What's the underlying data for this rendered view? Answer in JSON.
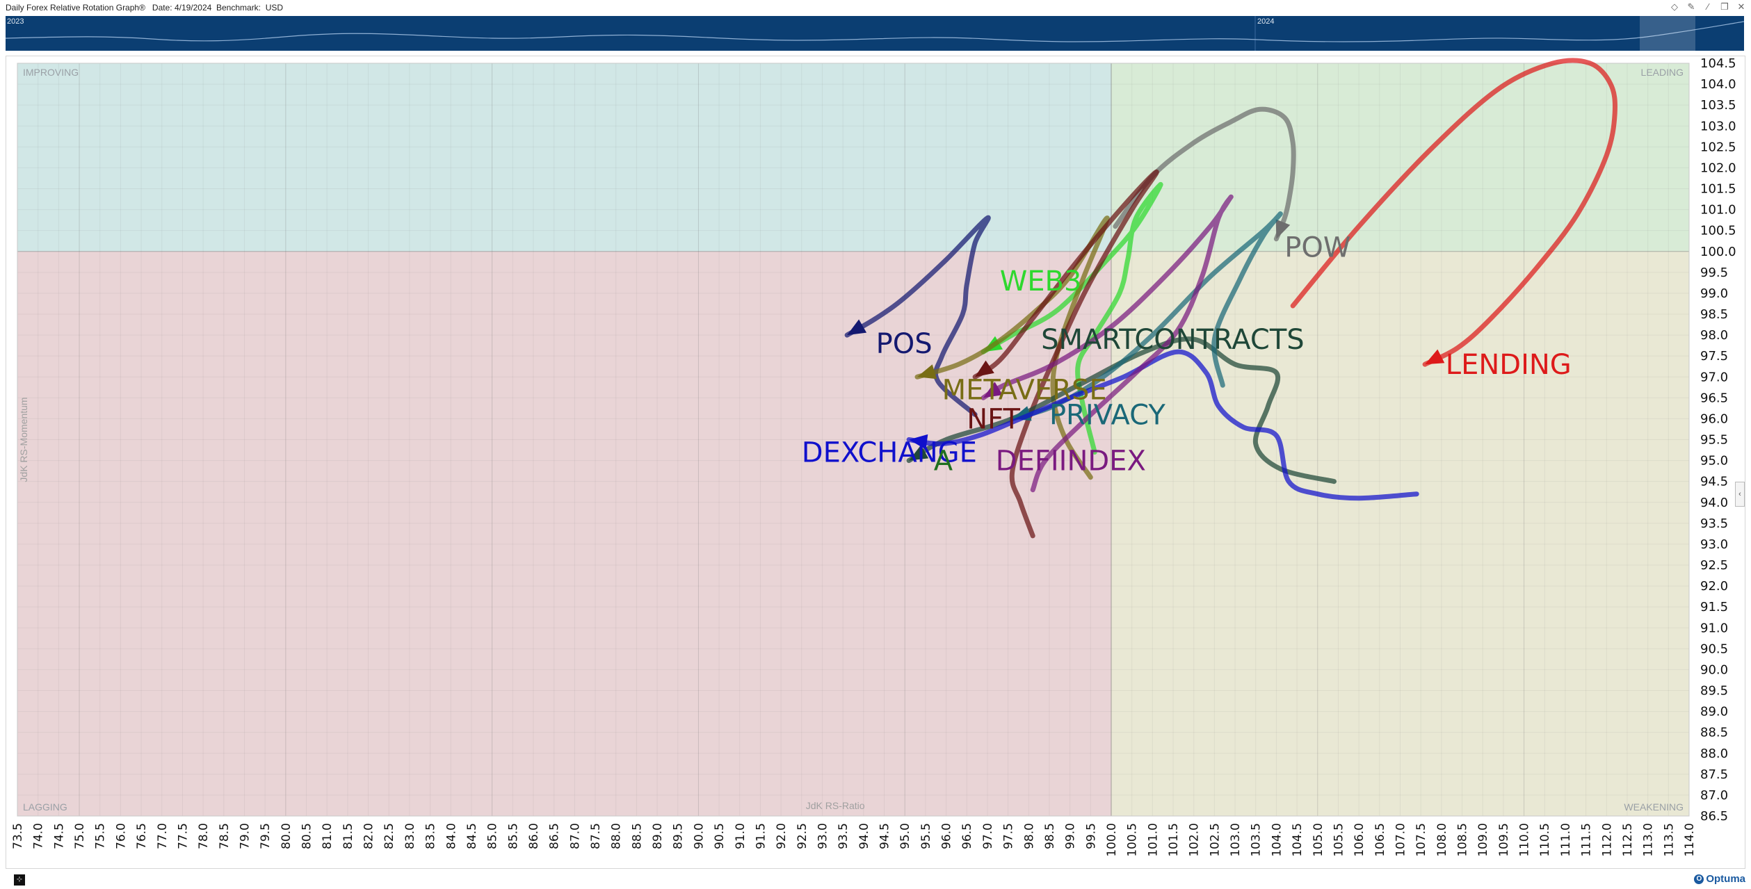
{
  "window": {
    "title": "Daily Forex Relative Rotation Graph®   Date: 4/19/2024  Benchmark:  USD",
    "controls": [
      "diamond-icon",
      "pin-icon",
      "edit-icon",
      "restore-icon",
      "close-icon"
    ]
  },
  "timeline": {
    "year_labels": [
      "2023",
      "2024"
    ]
  },
  "footer": {
    "logo": "Optuma"
  },
  "colors": {
    "improving": "#d1e7e6",
    "leading": "#d8ebd6",
    "lagging": "#e9d4d6",
    "weakening": "#e9e8d4",
    "timeline": "#0b3e72"
  },
  "chart_data": {
    "type": "line",
    "quadrants": {
      "improving": "IMPROVING",
      "leading": "LEADING",
      "lagging": "LAGGING",
      "weakening": "WEAKENING"
    },
    "xlabel": "JdK RS-Ratio",
    "ylabel": "JdK RS-Momentum",
    "xlim": [
      73.5,
      114.0
    ],
    "ylim": [
      86.5,
      104.5
    ],
    "center": [
      100,
      100
    ],
    "x_ticks": [
      "73.5",
      "74.0",
      "74.5",
      "75.0",
      "75.5",
      "76.0",
      "76.5",
      "77.0",
      "77.5",
      "78.0",
      "78.5",
      "79.0",
      "79.5",
      "80.0",
      "80.5",
      "81.0",
      "81.5",
      "82.0",
      "82.5",
      "83.0",
      "83.5",
      "84.0",
      "84.5",
      "85.0",
      "85.5",
      "86.0",
      "86.5",
      "87.0",
      "87.5",
      "88.0",
      "88.5",
      "89.0",
      "89.5",
      "90.0",
      "90.5",
      "91.0",
      "91.5",
      "92.0",
      "92.5",
      "93.0",
      "93.5",
      "94.0",
      "94.5",
      "95.0",
      "95.5",
      "96.0",
      "96.5",
      "97.0",
      "97.5",
      "98.0",
      "98.5",
      "99.0",
      "99.5",
      "100.0",
      "100.5",
      "101.0",
      "101.5",
      "102.0",
      "102.5",
      "103.0",
      "103.5",
      "104.0",
      "104.5",
      "105.0",
      "105.5",
      "106.0",
      "106.5",
      "107.0",
      "107.5",
      "108.0",
      "108.5",
      "109.0",
      "109.5",
      "110.0",
      "110.5",
      "111.0",
      "111.5",
      "112.0",
      "112.5",
      "113.0",
      "113.5",
      "114.0"
    ],
    "y_ticks": [
      "104.5",
      "104.0",
      "103.5",
      "103.0",
      "102.5",
      "102.0",
      "101.5",
      "101.0",
      "100.5",
      "100.0",
      "99.5",
      "99.0",
      "98.5",
      "98.0",
      "97.5",
      "97.0",
      "96.5",
      "96.0",
      "95.5",
      "95.0",
      "94.5",
      "94.0",
      "93.5",
      "93.0",
      "92.5",
      "92.0",
      "91.5",
      "91.0",
      "90.5",
      "90.0",
      "89.5",
      "89.0",
      "88.5",
      "88.0",
      "87.5",
      "87.0",
      "86.5"
    ],
    "series": [
      {
        "name": "LENDING",
        "color": "#dd1a1a",
        "label_pos": [
          108.1,
          97.3
        ],
        "points": [
          [
            104.4,
            98.7
          ],
          [
            106.0,
            100.6
          ],
          [
            107.8,
            102.5
          ],
          [
            109.4,
            103.9
          ],
          [
            110.7,
            104.5
          ],
          [
            111.6,
            104.5
          ],
          [
            112.1,
            104.0
          ],
          [
            112.2,
            103.3
          ],
          [
            112.0,
            102.3
          ],
          [
            111.3,
            100.9
          ],
          [
            110.3,
            99.6
          ],
          [
            109.2,
            98.4
          ],
          [
            108.4,
            97.7
          ],
          [
            107.6,
            97.3
          ]
        ]
      },
      {
        "name": "POW",
        "color": "#6e6e6e",
        "label_pos": [
          104.2,
          100.1
        ],
        "points": [
          [
            100.1,
            100.6
          ],
          [
            101.0,
            101.8
          ],
          [
            102.0,
            102.6
          ],
          [
            102.9,
            103.1
          ],
          [
            103.6,
            103.4
          ],
          [
            104.2,
            103.2
          ],
          [
            104.4,
            102.6
          ],
          [
            104.4,
            101.9
          ],
          [
            104.3,
            101.2
          ],
          [
            104.2,
            100.8
          ],
          [
            104.0,
            100.3
          ]
        ]
      },
      {
        "name": "POS",
        "color": "#141970",
        "label_pos": [
          94.3,
          97.8
        ],
        "points": [
          [
            96.7,
            96.1
          ],
          [
            95.8,
            96.9
          ],
          [
            95.9,
            97.5
          ],
          [
            96.4,
            98.5
          ],
          [
            96.5,
            99.2
          ],
          [
            96.7,
            100.2
          ],
          [
            97.0,
            100.8
          ],
          [
            96.0,
            99.8
          ],
          [
            95.0,
            98.9
          ],
          [
            94.3,
            98.4
          ],
          [
            93.6,
            98.0
          ]
        ]
      },
      {
        "name": "WEB3",
        "color": "#2ed82e",
        "label_pos": [
          97.3,
          99.3
        ],
        "points": [
          [
            99.6,
            95.2
          ],
          [
            99.3,
            96.4
          ],
          [
            99.2,
            97.3
          ],
          [
            99.6,
            98.0
          ],
          [
            100.2,
            99.0
          ],
          [
            100.4,
            99.8
          ],
          [
            100.6,
            100.8
          ],
          [
            101.2,
            101.6
          ],
          [
            100.6,
            100.6
          ],
          [
            99.9,
            99.8
          ],
          [
            98.7,
            98.6
          ],
          [
            97.6,
            98.0
          ],
          [
            96.9,
            97.6
          ]
        ]
      },
      {
        "name": "METAVERSE",
        "color": "#786d15",
        "label_pos": [
          95.9,
          96.7
        ],
        "points": [
          [
            99.5,
            94.6
          ],
          [
            98.9,
            95.5
          ],
          [
            98.6,
            96.5
          ],
          [
            98.7,
            97.6
          ],
          [
            99.3,
            99.3
          ],
          [
            99.9,
            100.8
          ],
          [
            99.0,
            99.4
          ],
          [
            98.2,
            98.6
          ],
          [
            97.2,
            97.8
          ],
          [
            96.3,
            97.3
          ],
          [
            95.3,
            97.0
          ]
        ]
      },
      {
        "name": "NFT",
        "color": "#6a1414",
        "label_pos": [
          96.5,
          96.0
        ],
        "points": [
          [
            98.1,
            93.2
          ],
          [
            97.8,
            94.0
          ],
          [
            97.6,
            94.7
          ],
          [
            98.0,
            96.0
          ],
          [
            98.6,
            97.4
          ],
          [
            99.4,
            99.1
          ],
          [
            100.5,
            101.0
          ],
          [
            101.1,
            101.9
          ],
          [
            100.4,
            101.2
          ],
          [
            99.2,
            99.8
          ],
          [
            98.1,
            98.4
          ],
          [
            97.3,
            97.4
          ],
          [
            96.7,
            97.0
          ]
        ]
      },
      {
        "name": "SMARTCONTRACTS",
        "color": "#1f4738",
        "label_pos": [
          98.3,
          97.9
        ],
        "points": [
          [
            105.4,
            94.5
          ],
          [
            104.1,
            94.8
          ],
          [
            103.5,
            95.4
          ],
          [
            103.8,
            96.3
          ],
          [
            104.0,
            97.1
          ],
          [
            103.0,
            97.3
          ],
          [
            102.0,
            97.9
          ],
          [
            100.8,
            97.6
          ],
          [
            99.2,
            96.8
          ],
          [
            97.6,
            96.0
          ],
          [
            96.0,
            95.5
          ],
          [
            95.1,
            95.0
          ]
        ]
      },
      {
        "name": "PRIVACY",
        "color": "#1a6878",
        "label_pos": [
          98.5,
          96.1
        ],
        "points": [
          [
            102.7,
            96.8
          ],
          [
            102.5,
            97.9
          ],
          [
            103.1,
            99.3
          ],
          [
            103.7,
            100.4
          ],
          [
            104.1,
            100.9
          ],
          [
            103.7,
            100.5
          ],
          [
            102.4,
            99.4
          ],
          [
            101.0,
            98.0
          ],
          [
            99.8,
            97.0
          ],
          [
            98.6,
            96.3
          ],
          [
            97.6,
            96.0
          ]
        ]
      },
      {
        "name": "DEXCHANGE",
        "color": "#1010cc",
        "label_pos": [
          92.5,
          95.2
        ],
        "points": [
          [
            107.4,
            94.2
          ],
          [
            106.0,
            94.1
          ],
          [
            105.0,
            94.2
          ],
          [
            104.3,
            94.5
          ],
          [
            104.0,
            95.6
          ],
          [
            103.2,
            95.8
          ],
          [
            102.6,
            96.3
          ],
          [
            102.3,
            97.1
          ],
          [
            101.6,
            97.6
          ],
          [
            100.3,
            97.0
          ],
          [
            99.0,
            96.5
          ],
          [
            97.8,
            96.0
          ],
          [
            96.8,
            95.6
          ],
          [
            95.9,
            95.4
          ],
          [
            95.1,
            95.5
          ]
        ]
      },
      {
        "name": "DEFIINDEX",
        "color": "#7a1a80",
        "label_pos": [
          97.2,
          95.0
        ],
        "points": [
          [
            98.1,
            94.3
          ],
          [
            98.4,
            95.0
          ],
          [
            99.4,
            96.0
          ],
          [
            100.6,
            97.1
          ],
          [
            101.6,
            98.1
          ],
          [
            102.2,
            99.4
          ],
          [
            102.6,
            100.8
          ],
          [
            102.9,
            101.3
          ],
          [
            102.4,
            100.6
          ],
          [
            101.3,
            99.4
          ],
          [
            100.0,
            98.2
          ],
          [
            98.6,
            97.3
          ],
          [
            97.4,
            96.8
          ],
          [
            96.9,
            96.5
          ]
        ]
      }
    ],
    "extra_labels": [
      {
        "text": "A",
        "color": "#1f6f1f",
        "pos": [
          95.7,
          95.0
        ]
      }
    ]
  }
}
